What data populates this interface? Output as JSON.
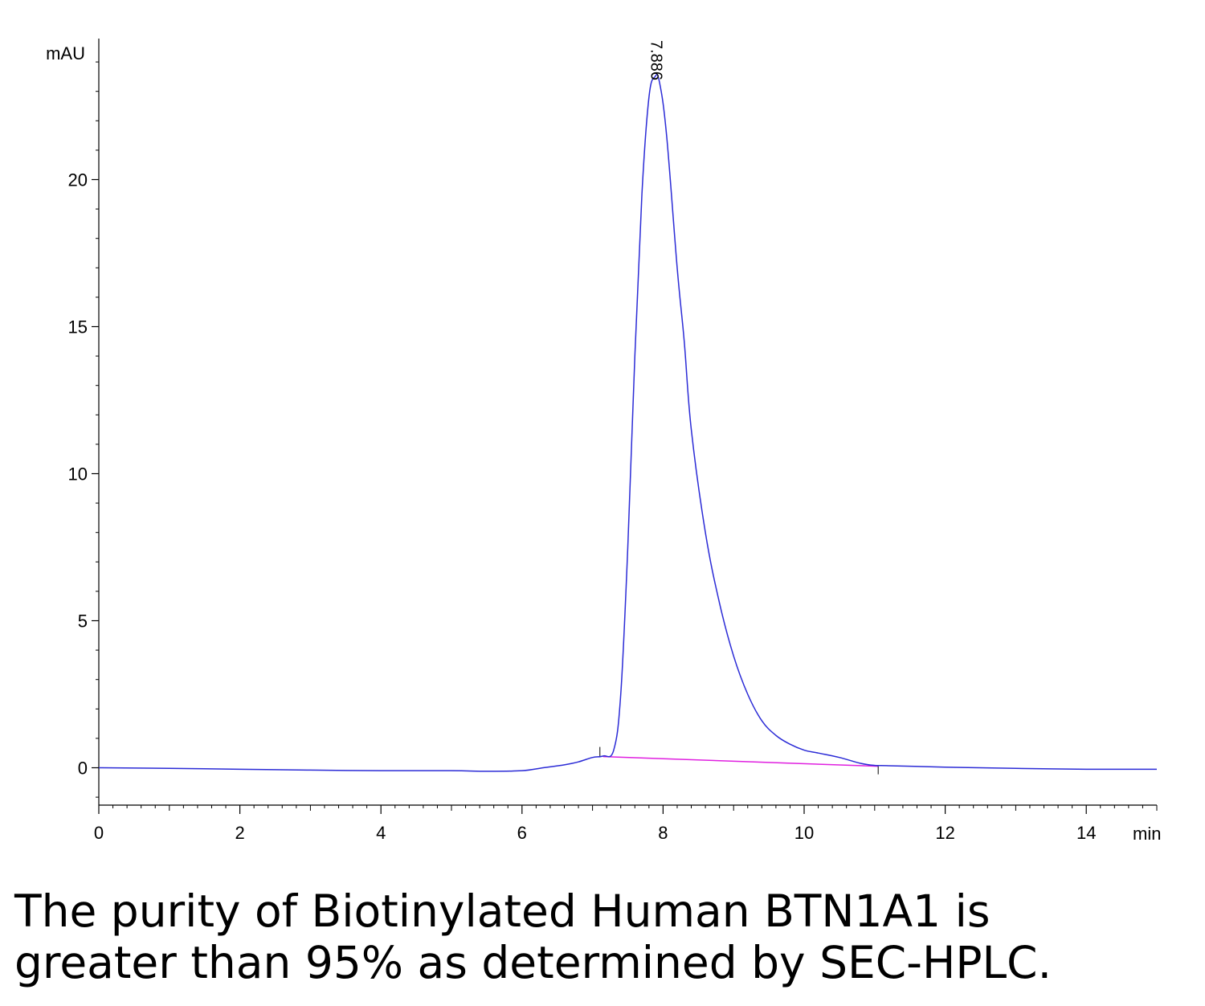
{
  "chart_data": {
    "type": "line",
    "xlabel": "min",
    "ylabel": "mAU",
    "xlim": [
      0,
      15
    ],
    "ylim": [
      -1.3,
      24.5
    ],
    "x_ticks": [
      0,
      2,
      4,
      6,
      8,
      10,
      12,
      14
    ],
    "y_ticks": [
      0,
      5,
      10,
      15,
      20
    ],
    "series": [
      {
        "color": "#2b2bd6",
        "x": [
          0,
          1,
          2,
          3,
          4,
          5,
          5.5,
          6,
          6.3,
          6.6,
          6.8,
          7.0,
          7.15,
          7.3,
          7.4,
          7.5,
          7.6,
          7.7,
          7.8,
          7.886,
          7.95,
          8.05,
          8.2,
          8.3,
          8.4,
          8.6,
          8.8,
          9.0,
          9.2,
          9.4,
          9.6,
          9.8,
          10.0,
          10.2,
          10.5,
          10.8,
          11.0,
          11.2,
          12,
          13,
          14,
          15
        ],
        "y": [
          0,
          -0.02,
          -0.05,
          -0.08,
          -0.1,
          -0.1,
          -0.12,
          -0.1,
          0,
          0.1,
          0.2,
          0.35,
          0.4,
          0.6,
          2.5,
          7.5,
          14.0,
          19.5,
          22.8,
          23.5,
          23.3,
          21.5,
          17.0,
          14.5,
          11.5,
          8.0,
          5.6,
          3.8,
          2.5,
          1.6,
          1.1,
          0.8,
          0.6,
          0.5,
          0.35,
          0.15,
          0.08,
          0.07,
          0.02,
          -0.02,
          -0.05,
          -0.05
        ]
      }
    ],
    "baseline": {
      "color": "#e020e0",
      "x": [
        7.15,
        11.05
      ],
      "y": [
        0.38,
        0.05
      ]
    },
    "annotations": [
      {
        "text": "7.886",
        "x": 7.886
      }
    ]
  },
  "caption": {
    "line1": "The purity of Biotinylated Human BTN1A1 is",
    "line2": "greater than 95% as determined by SEC-HPLC."
  }
}
